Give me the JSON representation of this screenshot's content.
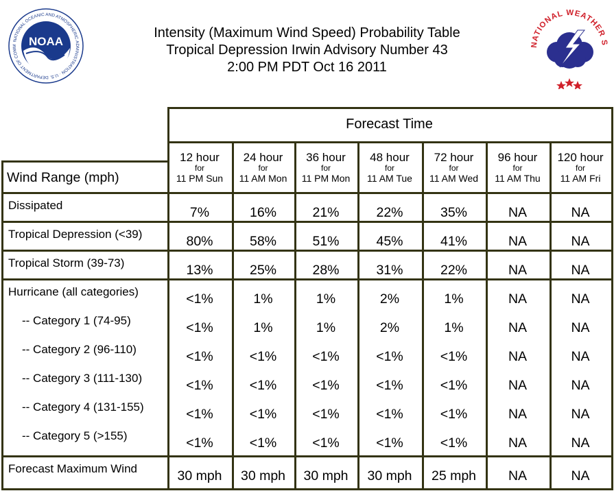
{
  "title": {
    "line1": "Intensity (Maximum Wind Speed) Probability Table",
    "line2": "Tropical Depression Irwin Advisory Number 43",
    "line3": "2:00 PM PDT Oct 16 2011"
  },
  "logos": {
    "noaa": {
      "icon": "noaa-logo-icon",
      "text": "NOAA",
      "ring": "NATIONAL OCEANIC AND ATMOSPHERIC ADMINISTRATION · U.S. DEPARTMENT OF COMMERCE"
    },
    "nws": {
      "icon": "nws-logo-icon",
      "ring": "NATIONAL WEATHER SERVICE"
    }
  },
  "colors": {
    "grid": "#333313",
    "noaa_blue": "#1a3a8c",
    "nws_red": "#d0202a",
    "nws_cloud": "#2b2f8f"
  },
  "table": {
    "forecast_time_label": "Forecast Time",
    "wind_range_label": "Wind Range (mph)",
    "columns": [
      {
        "hours": "12 hour",
        "for": "for",
        "time": "11 PM Sun"
      },
      {
        "hours": "24 hour",
        "for": "for",
        "time": "11 AM Mon"
      },
      {
        "hours": "36 hour",
        "for": "for",
        "time": "11 PM Mon"
      },
      {
        "hours": "48 hour",
        "for": "for",
        "time": "11 AM Tue"
      },
      {
        "hours": "72 hour",
        "for": "for",
        "time": "11 AM Wed"
      },
      {
        "hours": "96 hour",
        "for": "for",
        "time": "11 AM Thu"
      },
      {
        "hours": "120 hour",
        "for": "for",
        "time": "11 AM Fri"
      }
    ],
    "rows": [
      {
        "label": "Dissipated",
        "values": [
          "7%",
          "16%",
          "21%",
          "22%",
          "35%",
          "NA",
          "NA"
        ]
      },
      {
        "label": "Tropical Depression (<39)",
        "values": [
          "80%",
          "58%",
          "51%",
          "45%",
          "41%",
          "NA",
          "NA"
        ]
      },
      {
        "label": "Tropical Storm (39-73)",
        "values": [
          "13%",
          "25%",
          "28%",
          "31%",
          "22%",
          "NA",
          "NA"
        ]
      },
      {
        "label": "Hurricane (all categories)",
        "values": [
          "<1%",
          "1%",
          "1%",
          "2%",
          "1%",
          "NA",
          "NA"
        ]
      },
      {
        "label": "-- Category 1 (74-95)",
        "values": [
          "<1%",
          "1%",
          "1%",
          "2%",
          "1%",
          "NA",
          "NA"
        ]
      },
      {
        "label": "-- Category 2 (96-110)",
        "values": [
          "<1%",
          "<1%",
          "<1%",
          "<1%",
          "<1%",
          "NA",
          "NA"
        ]
      },
      {
        "label": "-- Category 3 (111-130)",
        "values": [
          "<1%",
          "<1%",
          "<1%",
          "<1%",
          "<1%",
          "NA",
          "NA"
        ]
      },
      {
        "label": "-- Category 4 (131-155)",
        "values": [
          "<1%",
          "<1%",
          "<1%",
          "<1%",
          "<1%",
          "NA",
          "NA"
        ]
      },
      {
        "label": "-- Category 5 (>155)",
        "values": [
          "<1%",
          "<1%",
          "<1%",
          "<1%",
          "<1%",
          "NA",
          "NA"
        ]
      }
    ],
    "max_wind": {
      "label": "Forecast Maximum Wind",
      "values": [
        "30 mph",
        "30 mph",
        "30 mph",
        "30 mph",
        "25 mph",
        "NA",
        "NA"
      ]
    }
  }
}
